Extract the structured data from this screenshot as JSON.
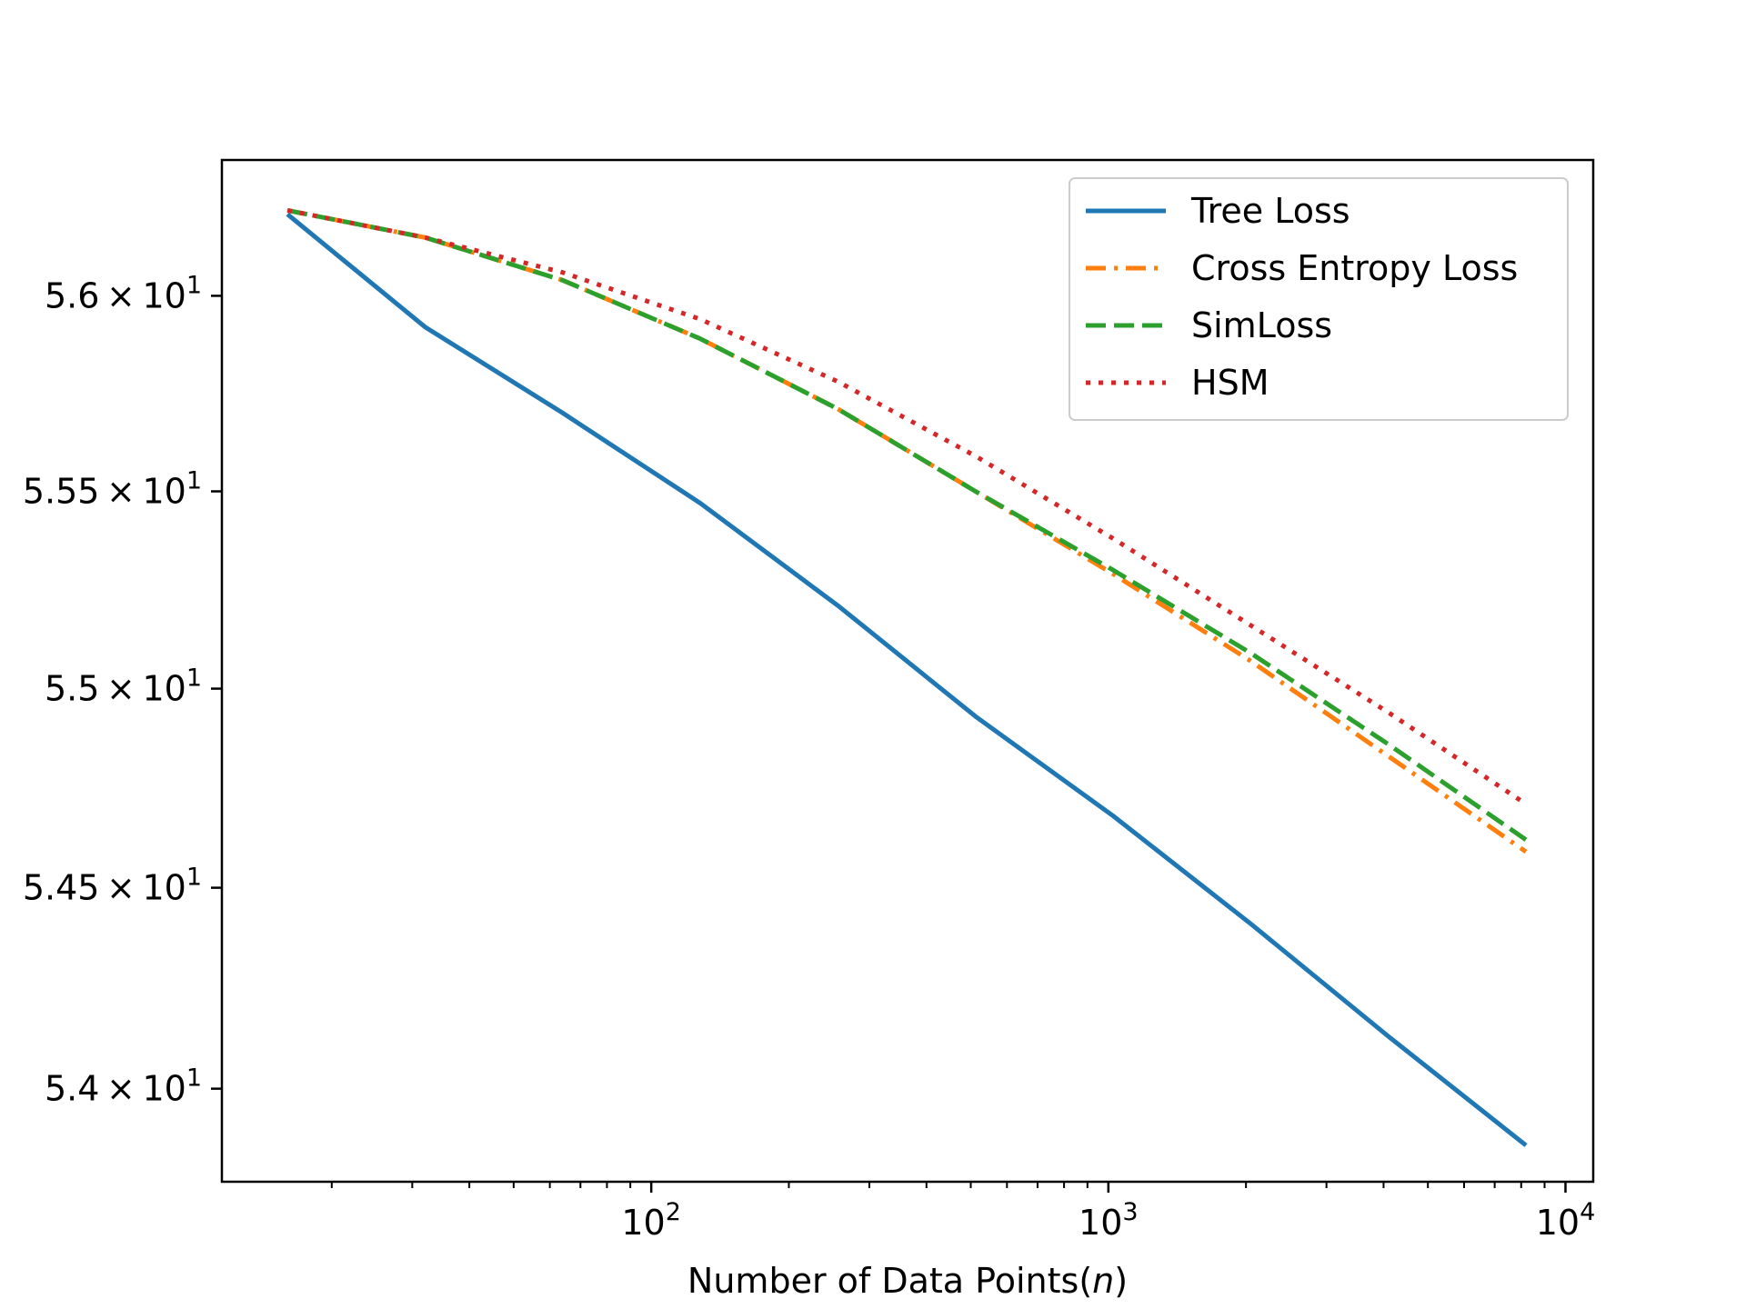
{
  "chart_data": {
    "type": "line",
    "title": "",
    "xlabel": "Number of Data Points(",
    "xlabel_italic": "n",
    "xlabel_suffix": ")",
    "ylabel": "",
    "xscale": "log",
    "yscale": "log",
    "xlim": [
      11.5,
      11500
    ],
    "ylim": [
      53.77,
      56.35
    ],
    "grid": false,
    "legend_position": "top-right",
    "x_ticks": [
      {
        "value": 100,
        "base": "10",
        "exp": "2"
      },
      {
        "value": 1000,
        "base": "10",
        "exp": "3"
      },
      {
        "value": 10000,
        "base": "10",
        "exp": "4"
      }
    ],
    "y_ticks": [
      {
        "value": 56.0,
        "mantissa": "5.6",
        "times": "×",
        "base": "10",
        "exp": "1"
      },
      {
        "value": 55.5,
        "mantissa": "5.55",
        "times": "×",
        "base": "10",
        "exp": "1"
      },
      {
        "value": 55.0,
        "mantissa": "5.5",
        "times": "×",
        "base": "10",
        "exp": "1"
      },
      {
        "value": 54.5,
        "mantissa": "5.45",
        "times": "×",
        "base": "10",
        "exp": "1"
      },
      {
        "value": 54.0,
        "mantissa": "5.4",
        "times": "×",
        "base": "10",
        "exp": "1"
      }
    ],
    "x": [
      16,
      32,
      64,
      128,
      256,
      512,
      1024,
      2048,
      4096,
      8192
    ],
    "series": [
      {
        "name": "Tree Loss",
        "color": "#1f77b4",
        "style": "solid",
        "values": [
          56.21,
          55.92,
          55.7,
          55.47,
          55.21,
          54.93,
          54.68,
          54.41,
          54.13,
          53.86
        ]
      },
      {
        "name": "Cross Entropy Loss",
        "color": "#ff7f0e",
        "style": "dashdot",
        "values": [
          56.22,
          56.15,
          56.04,
          55.89,
          55.71,
          55.5,
          55.29,
          55.07,
          54.83,
          54.59
        ]
      },
      {
        "name": "SimLoss",
        "color": "#2ca02c",
        "style": "dashed",
        "values": [
          56.22,
          56.15,
          56.04,
          55.89,
          55.71,
          55.5,
          55.3,
          55.09,
          54.86,
          54.62
        ]
      },
      {
        "name": "HSM",
        "color": "#d62728",
        "style": "dotted",
        "values": [
          56.22,
          56.15,
          56.06,
          55.94,
          55.78,
          55.59,
          55.38,
          55.16,
          54.94,
          54.71
        ]
      }
    ]
  }
}
